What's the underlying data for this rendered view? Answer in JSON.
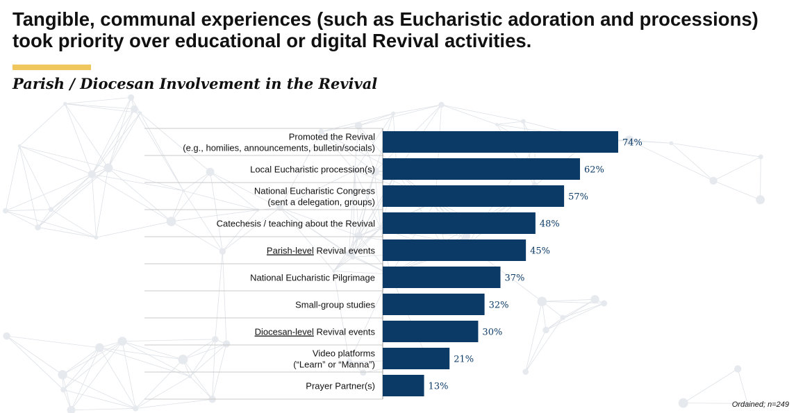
{
  "slide": {
    "headline_line1": "Tangible, communal experiences (such as Eucharistic adoration and processions)",
    "headline_line2": "took priority over educational or digital Revival activities.",
    "subtitle": "Parish / Diocesan Involvement in the Revival",
    "footnote": "Ordained; n=249",
    "accent_color": "#EFC75E"
  },
  "chart_data": {
    "type": "bar",
    "orientation": "horizontal",
    "title": "Parish / Diocesan Involvement in the Revival",
    "xlabel": "",
    "ylabel": "",
    "xlim": [
      0,
      100
    ],
    "value_suffix": "%",
    "bar_color": "#0B3A66",
    "categories": [
      {
        "line1": "Promoted the Revival",
        "line2": "(e.g., homilies, announcements, bulletin/socials)",
        "underline": ""
      },
      {
        "line1": "Local Eucharistic procession(s)",
        "line2": "",
        "underline": ""
      },
      {
        "line1": "National Eucharistic Congress",
        "line2": "(sent a delegation, groups)",
        "underline": ""
      },
      {
        "line1": "Catechesis / teaching about the Revival",
        "line2": "",
        "underline": ""
      },
      {
        "line1": " Revival events",
        "line2": "",
        "underline": "Parish-level"
      },
      {
        "line1": "National Eucharistic Pilgrimage",
        "line2": "",
        "underline": ""
      },
      {
        "line1": "Small-group studies",
        "line2": "",
        "underline": ""
      },
      {
        "line1": " Revival events",
        "line2": "",
        "underline": "Diocesan-level"
      },
      {
        "line1": "Video platforms",
        "line2": "(“Learn” or “Manna”)",
        "underline": ""
      },
      {
        "line1": "Prayer Partner(s)",
        "line2": "",
        "underline": ""
      }
    ],
    "values": [
      74,
      62,
      57,
      48,
      45,
      37,
      32,
      30,
      21,
      13
    ]
  }
}
